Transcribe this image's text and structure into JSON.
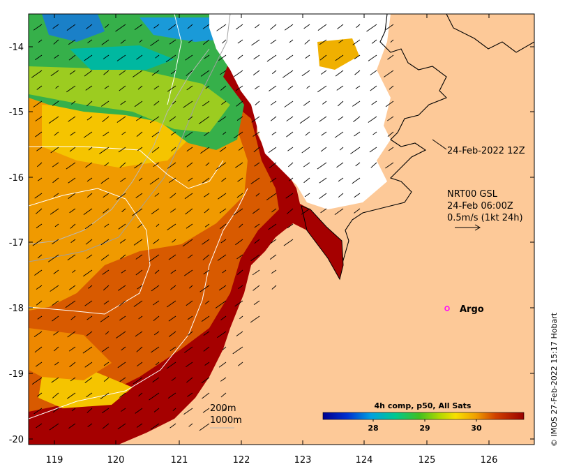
{
  "map": {
    "x_axis_ticks": [
      "119",
      "120",
      "121",
      "122",
      "123",
      "124",
      "125",
      "126"
    ],
    "y_axis_ticks": [
      "-14",
      "-15",
      "-16",
      "-17",
      "-18",
      "-19",
      "-20"
    ],
    "lon_range": [
      118.6,
      126.8
    ],
    "lat_range": [
      -20.15,
      -13.55
    ],
    "colors": {
      "land": "#fdc998",
      "cloud": "#ffffff",
      "sst_hot": "#a50000",
      "sst_warm": "#d95a00",
      "sst_mid": "#f0a500",
      "sst_cool": "#1fb050",
      "coast": "#000000",
      "contour": "#ffffff",
      "argo": "#ff00ff"
    }
  },
  "annotations": {
    "composite_time": "24-Feb-2022 12Z",
    "current_source": "NRT00 GSL",
    "current_time": "24-Feb 06:00Z",
    "current_scale": "0.5m/s (1kt 24h)"
  },
  "argo": {
    "label": "Argo",
    "lon": 125.3,
    "lat": -18.0
  },
  "isobaths": {
    "depth_1": "200m",
    "depth_2": "1000m"
  },
  "colorbar": {
    "title": "4h comp, p50, All Sats",
    "ticks": [
      "28",
      "29",
      "30"
    ]
  },
  "credit": "© IMOS 27-Feb-2022 15:17 Hobart"
}
